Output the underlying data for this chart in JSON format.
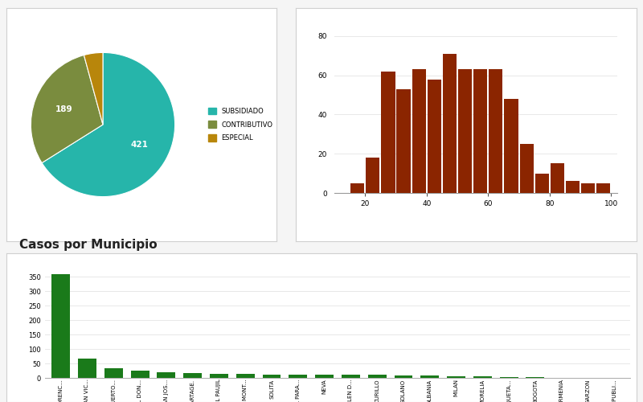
{
  "pie_values": [
    421,
    189,
    27
  ],
  "pie_labels": [
    "421",
    "189",
    ""
  ],
  "pie_colors": [
    "#26b5aa",
    "#7a8c3e",
    "#b8860b"
  ],
  "pie_legend_labels": [
    "SUBSIDIADO",
    "CONTRIBUTIVO",
    "ESPECIAL"
  ],
  "pie_legend_colors": [
    "#26b5aa",
    "#7a8c3e",
    "#b8860b"
  ],
  "hist_x": [
    15,
    20,
    25,
    30,
    35,
    40,
    45,
    50,
    55,
    60,
    65,
    70,
    75,
    80,
    85,
    90,
    95
  ],
  "hist_heights": [
    5,
    18,
    62,
    53,
    63,
    58,
    71,
    63,
    63,
    63,
    48,
    25,
    10,
    15,
    6,
    5,
    5
  ],
  "hist_color": "#8b2500",
  "hist_xlim": [
    10,
    102
  ],
  "hist_ylim": [
    0,
    82
  ],
  "hist_xticks": [
    20,
    40,
    60,
    80,
    100
  ],
  "hist_yticks": [
    0,
    20,
    40,
    60,
    80
  ],
  "bar_categories": [
    "FLORENC...",
    "SAN VIC...",
    "PUERTO...",
    "EL DON...",
    "SAN JOS...",
    "CARTAGE.",
    "EL PAUJIL",
    "LA MONT...",
    "SOLITA",
    "VAL PARA...",
    "NEVA",
    "BELEN D...",
    "CURILLO",
    "SOLANO",
    "ALBANIA",
    "MILAN",
    "MORELIA",
    "CAQUETA...",
    "BOGOTA",
    "ARMENIA",
    "GARZON",
    "REPUBLI..."
  ],
  "bar_values": [
    357,
    68,
    33,
    25,
    19,
    17,
    13,
    13,
    12,
    12,
    11,
    11,
    10,
    9,
    8,
    6,
    6,
    3,
    2,
    1,
    1,
    1
  ],
  "bar_color": "#1a7a1a",
  "bar_yticks": [
    0,
    50,
    100,
    150,
    200,
    250,
    300,
    350
  ],
  "bar_ylim": [
    0,
    375
  ],
  "section_title": "Casos por Municipio",
  "section_title_fontsize": 11,
  "bg_color": "#f5f5f5",
  "panel_bg": "#ffffff",
  "grid_color": "#e8e8e8"
}
